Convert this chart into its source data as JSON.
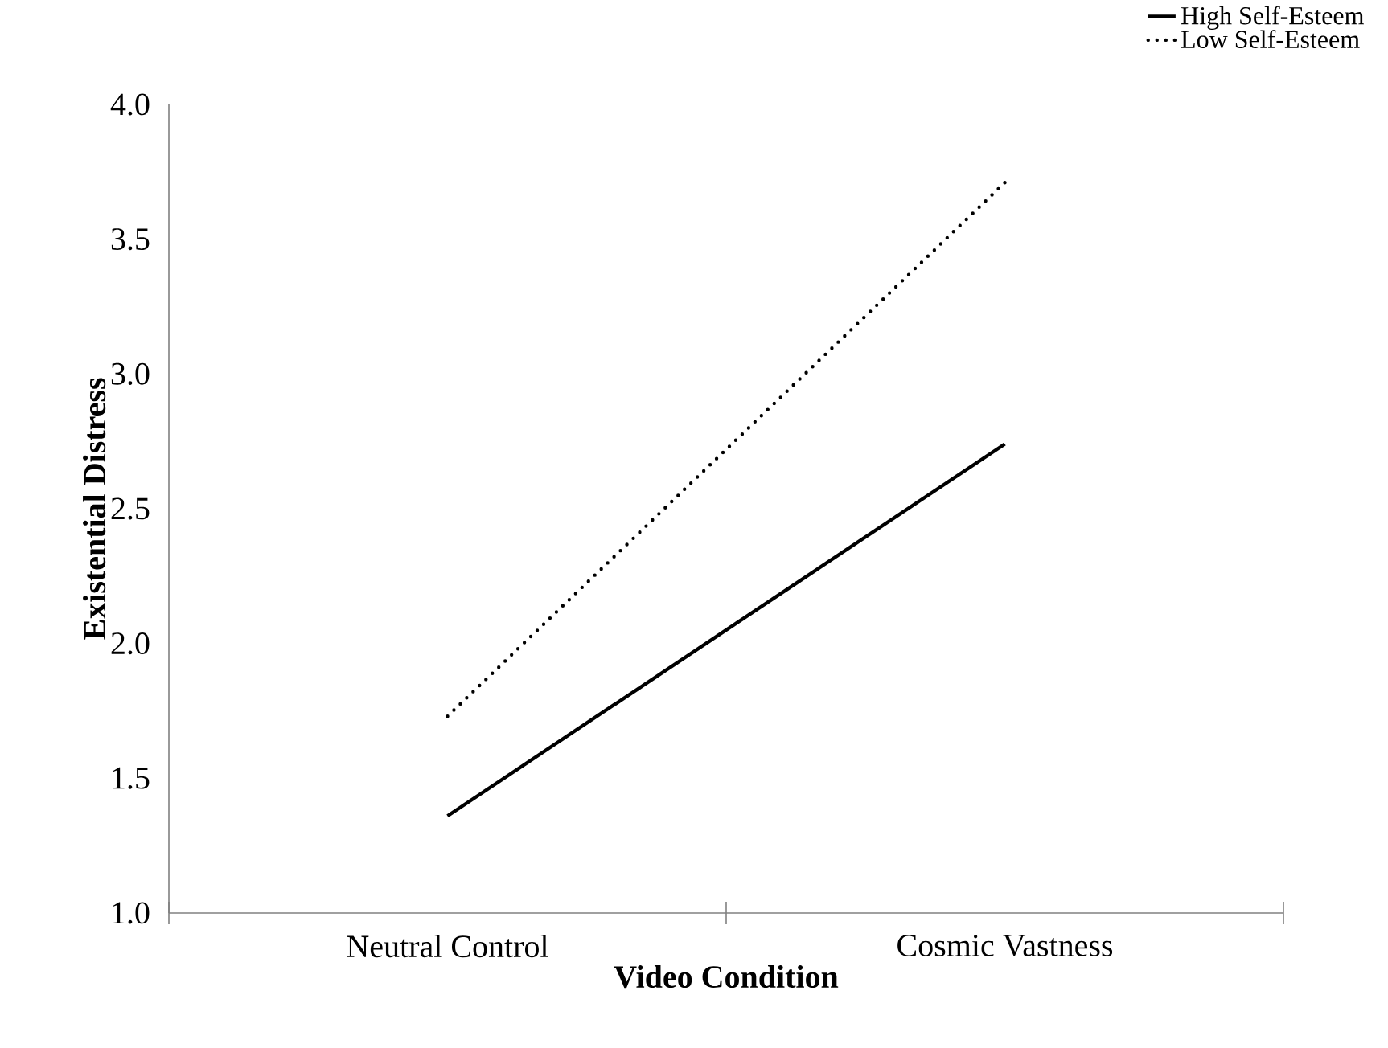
{
  "chart_data": {
    "type": "line",
    "xlabel": "Video Condition",
    "ylabel": "Existential Distress",
    "categories": [
      "Neutral Control",
      "Cosmic Vastness"
    ],
    "series": [
      {
        "name": "High Self-Esteem",
        "color": "#000000",
        "values": [
          1.36,
          2.74
        ],
        "line_style": "solid"
      },
      {
        "name": "Low Self-Esteem",
        "color": "#000000",
        "values": [
          1.73,
          3.71
        ],
        "line_style": "dotted"
      }
    ],
    "ylim": [
      1.0,
      4.0
    ],
    "yticks": [
      {
        "value": 1.0,
        "label": "1.0"
      },
      {
        "value": 1.5,
        "label": "1.5"
      },
      {
        "value": 2.0,
        "label": "2.0"
      },
      {
        "value": 2.5,
        "label": "2.5"
      },
      {
        "value": 3.0,
        "label": "3.0"
      },
      {
        "value": 3.5,
        "label": "3.5"
      },
      {
        "value": 4.0,
        "label": "4.0"
      }
    ],
    "grid": false,
    "legend": "top right",
    "marker": "none"
  }
}
